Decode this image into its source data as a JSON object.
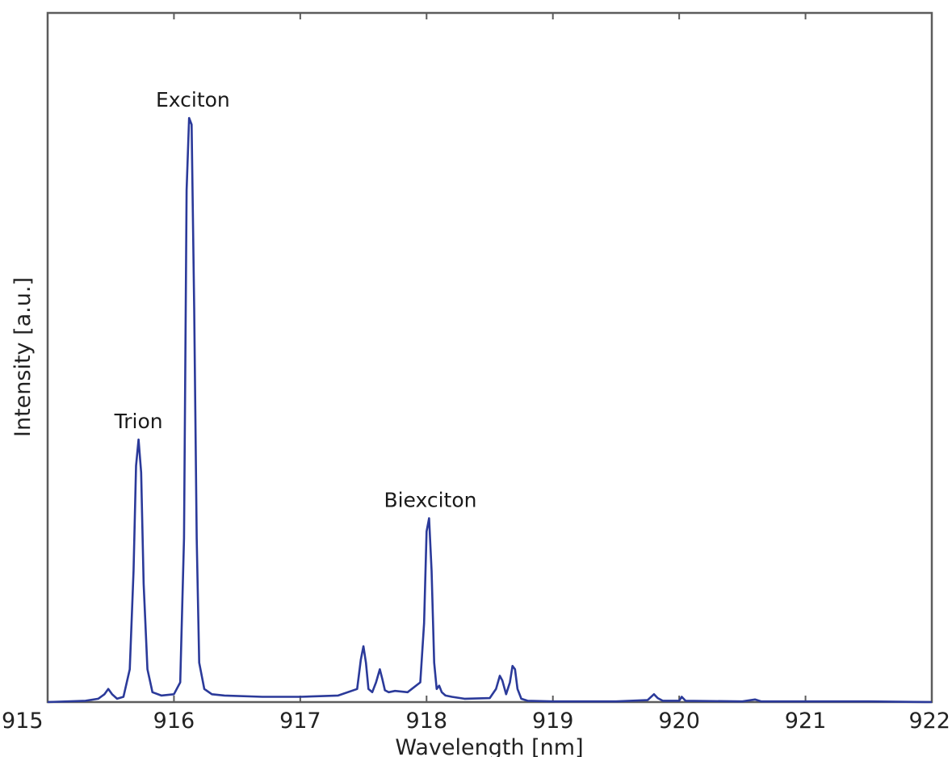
{
  "chart_data": {
    "type": "line",
    "title": "",
    "xlabel": "Wavelength [nm]",
    "ylabel": "Intensity [a.u.]",
    "xlim": [
      915,
      922
    ],
    "ylim": [
      0,
      1.05
    ],
    "xticks": [
      915,
      916,
      917,
      918,
      919,
      920,
      921,
      922
    ],
    "xtick_labels": [
      "915",
      "916",
      "917",
      "918",
      "919",
      "920",
      "921",
      "922"
    ],
    "yticks_shown": false,
    "grid": false,
    "legend": "none",
    "line_color": "#2b3a9a",
    "series": [
      {
        "x": [
          915.0,
          915.3,
          915.4,
          915.45,
          915.48,
          915.51,
          915.55,
          915.6,
          915.65,
          915.68,
          915.7,
          915.72,
          915.74,
          915.76,
          915.79,
          915.83,
          915.9,
          916.0,
          916.05,
          916.08,
          916.1,
          916.12,
          916.14,
          916.16,
          916.18,
          916.2,
          916.24,
          916.3,
          916.4,
          916.7,
          917.0,
          917.3,
          917.45,
          917.48,
          917.5,
          917.52,
          917.54,
          917.57,
          917.6,
          917.63,
          917.65,
          917.67,
          917.7,
          917.75,
          917.85,
          917.95,
          917.98,
          918.0,
          918.02,
          918.04,
          918.06,
          918.08,
          918.1,
          918.12,
          918.15,
          918.2,
          918.3,
          918.5,
          918.55,
          918.58,
          918.6,
          918.63,
          918.66,
          918.68,
          918.7,
          918.72,
          918.75,
          918.8,
          919.0,
          919.5,
          919.75,
          919.8,
          919.83,
          919.87,
          920.0,
          920.02,
          920.05,
          920.5,
          920.6,
          920.65,
          921.0,
          921.5,
          922.0
        ],
        "y": [
          0.0,
          0.002,
          0.005,
          0.012,
          0.02,
          0.012,
          0.005,
          0.008,
          0.05,
          0.2,
          0.36,
          0.4,
          0.35,
          0.18,
          0.05,
          0.015,
          0.01,
          0.012,
          0.03,
          0.25,
          0.78,
          0.89,
          0.88,
          0.6,
          0.25,
          0.06,
          0.02,
          0.012,
          0.01,
          0.008,
          0.008,
          0.01,
          0.02,
          0.065,
          0.085,
          0.06,
          0.02,
          0.015,
          0.03,
          0.05,
          0.035,
          0.018,
          0.015,
          0.017,
          0.015,
          0.03,
          0.12,
          0.26,
          0.28,
          0.2,
          0.06,
          0.02,
          0.025,
          0.015,
          0.01,
          0.008,
          0.005,
          0.006,
          0.02,
          0.04,
          0.033,
          0.012,
          0.03,
          0.055,
          0.05,
          0.02,
          0.005,
          0.002,
          0.001,
          0.001,
          0.003,
          0.012,
          0.006,
          0.002,
          0.002,
          0.008,
          0.002,
          0.001,
          0.004,
          0.001,
          0.001,
          0.001,
          0.0
        ]
      }
    ],
    "annotations": [
      {
        "text": "Exciton",
        "x": 916.15,
        "y": 0.9
      },
      {
        "text": "Trion",
        "x": 915.72,
        "y": 0.41
      },
      {
        "text": "Biexciton",
        "x": 918.03,
        "y": 0.29
      }
    ]
  }
}
